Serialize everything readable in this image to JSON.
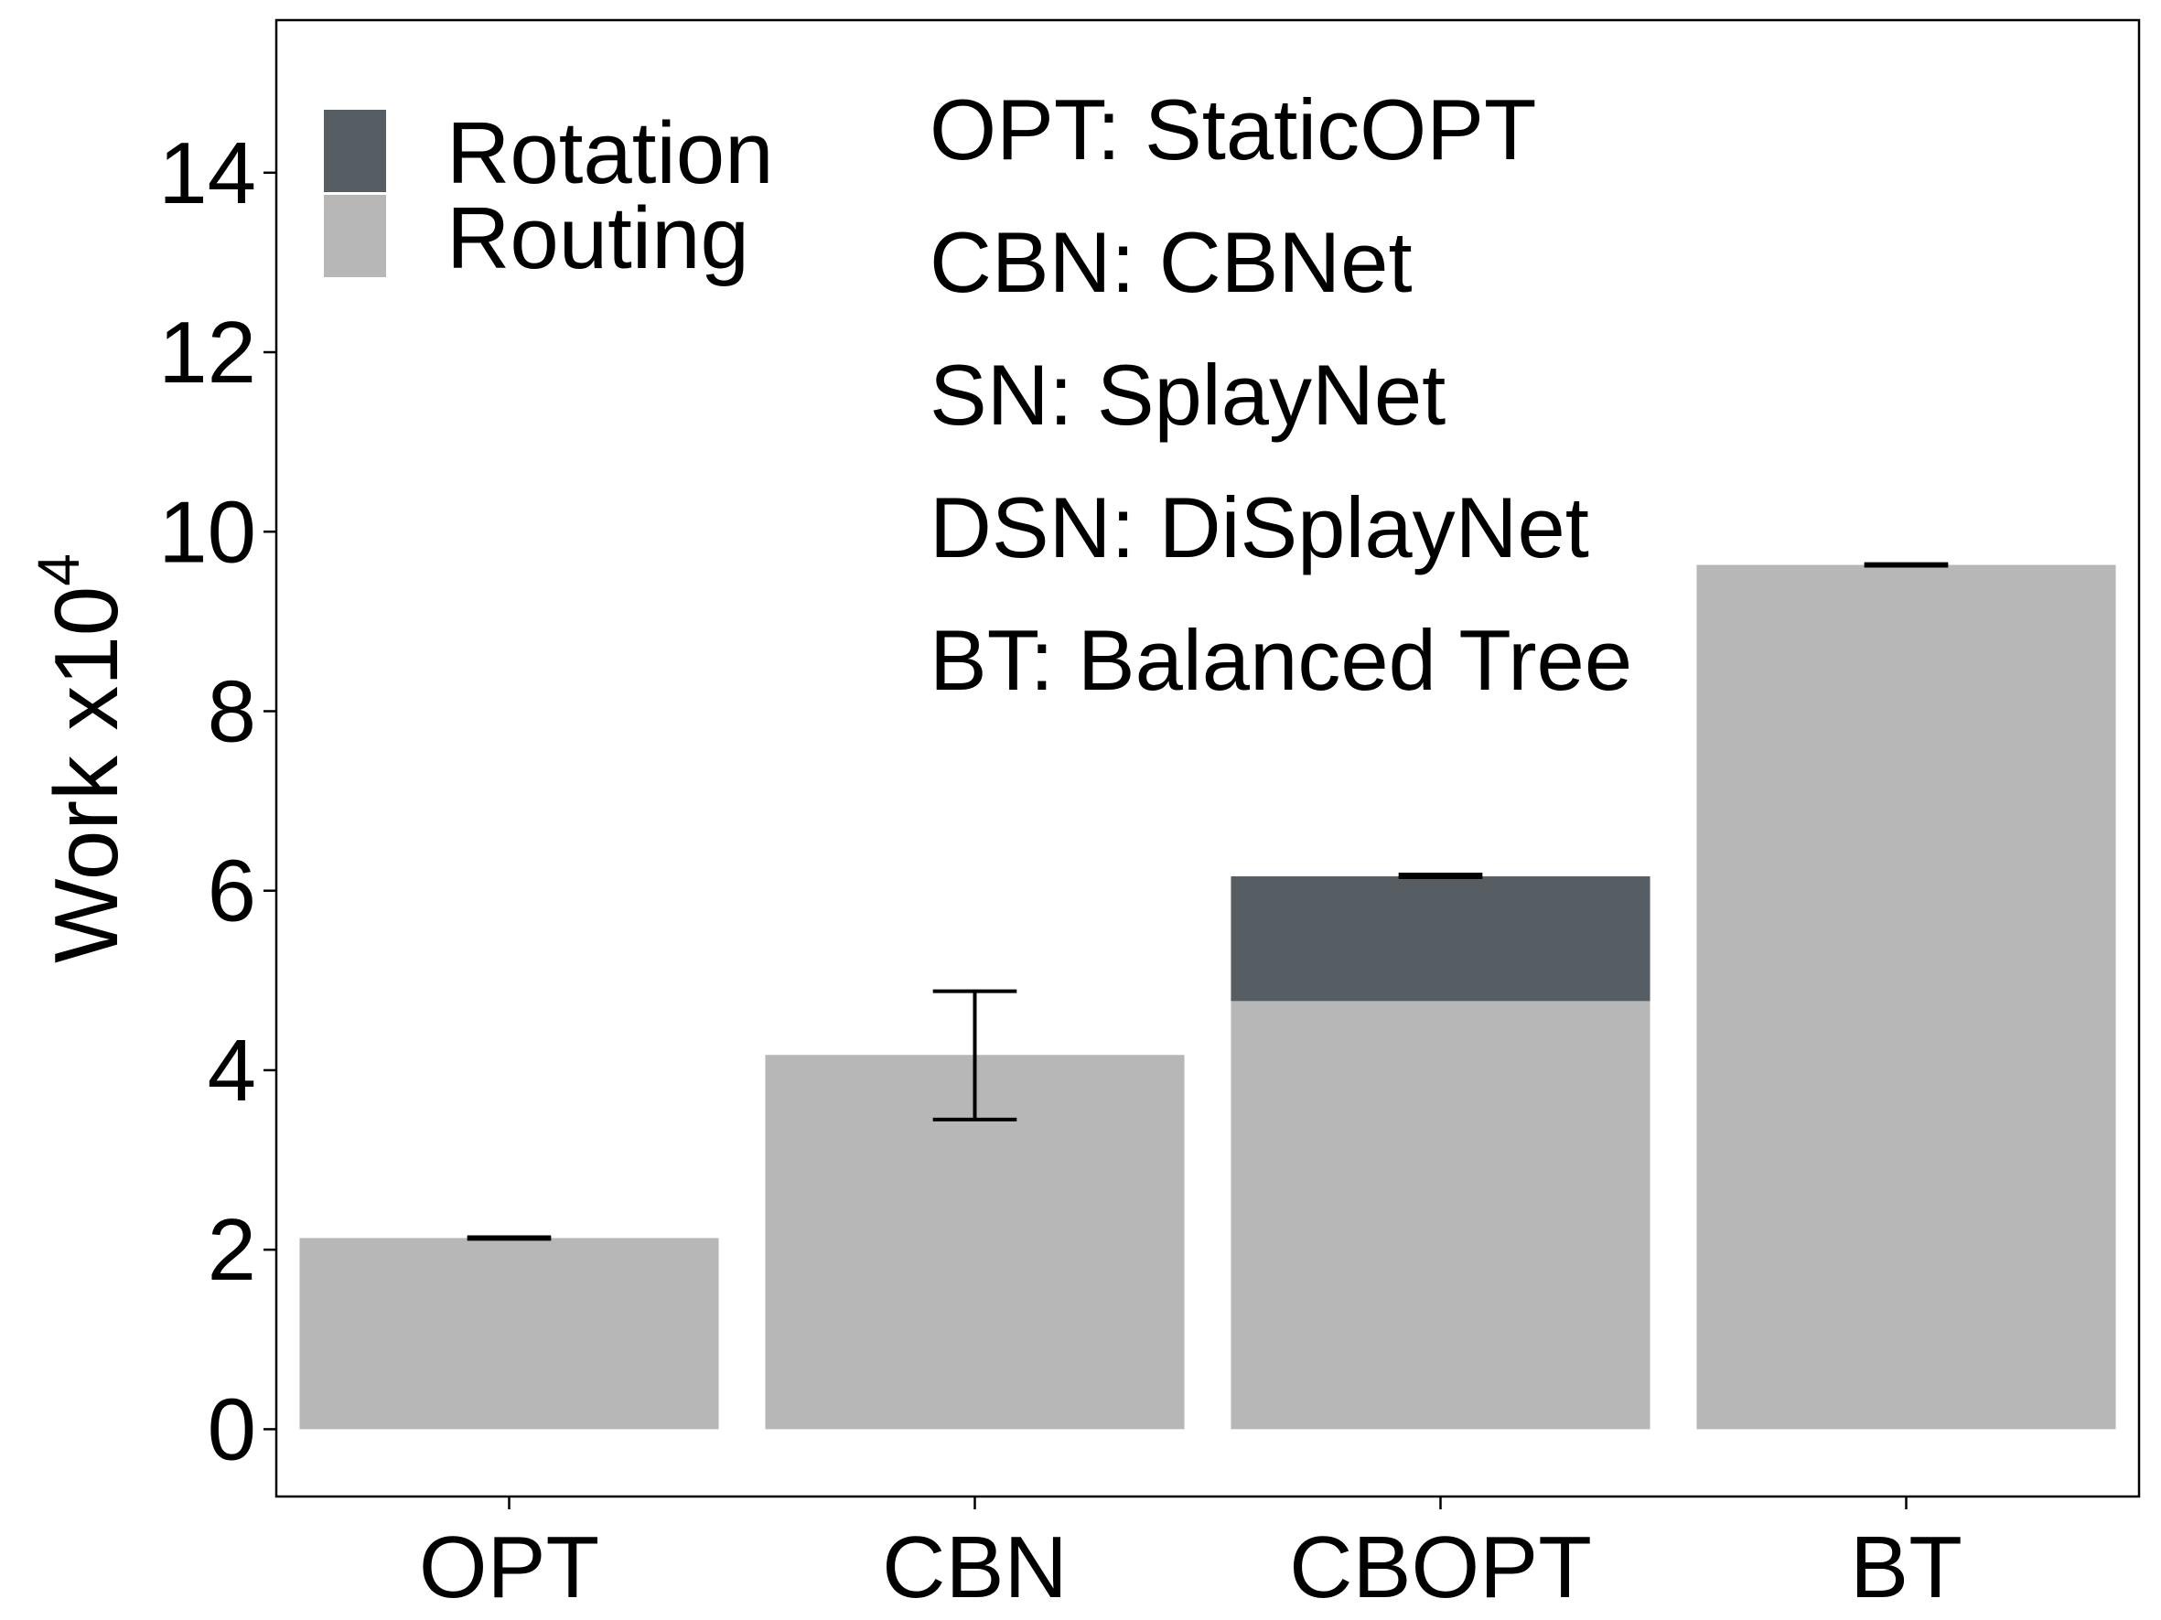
{
  "chart_data": {
    "type": "bar",
    "stacked": true,
    "categories": [
      "OPT",
      "CBN",
      "CBOPT",
      "BT"
    ],
    "series": [
      {
        "name": "Routing",
        "color": "#b7b7b7",
        "values": [
          2.13,
          4.17,
          4.77,
          9.63
        ]
      },
      {
        "name": "Rotation",
        "color": "#575e63",
        "values": [
          0,
          0,
          1.39,
          0
        ]
      }
    ],
    "error_bars": [
      {
        "low": 2.12,
        "high": 2.14
      },
      {
        "low": 3.45,
        "high": 4.88
      },
      {
        "low": 6.15,
        "high": 6.18
      },
      {
        "low": 9.62,
        "high": 9.64
      }
    ],
    "ylabel": "Work x10",
    "ylabel_superscript": "4",
    "ylim": [
      -0.75,
      15.7
    ],
    "yticks": [
      0,
      2,
      4,
      6,
      8,
      10,
      12,
      14
    ],
    "grid": false,
    "legend": {
      "position": "top-left",
      "entries": [
        {
          "label": "Rotation",
          "color": "#575e63"
        },
        {
          "label": "Routing",
          "color": "#b7b7b7"
        }
      ]
    },
    "annotations": [
      "OPT: StaticOPT",
      "CBN: CBNet",
      "SN: SplayNet",
      "DSN: DiSplayNet",
      "BT: Balanced Tree"
    ]
  }
}
